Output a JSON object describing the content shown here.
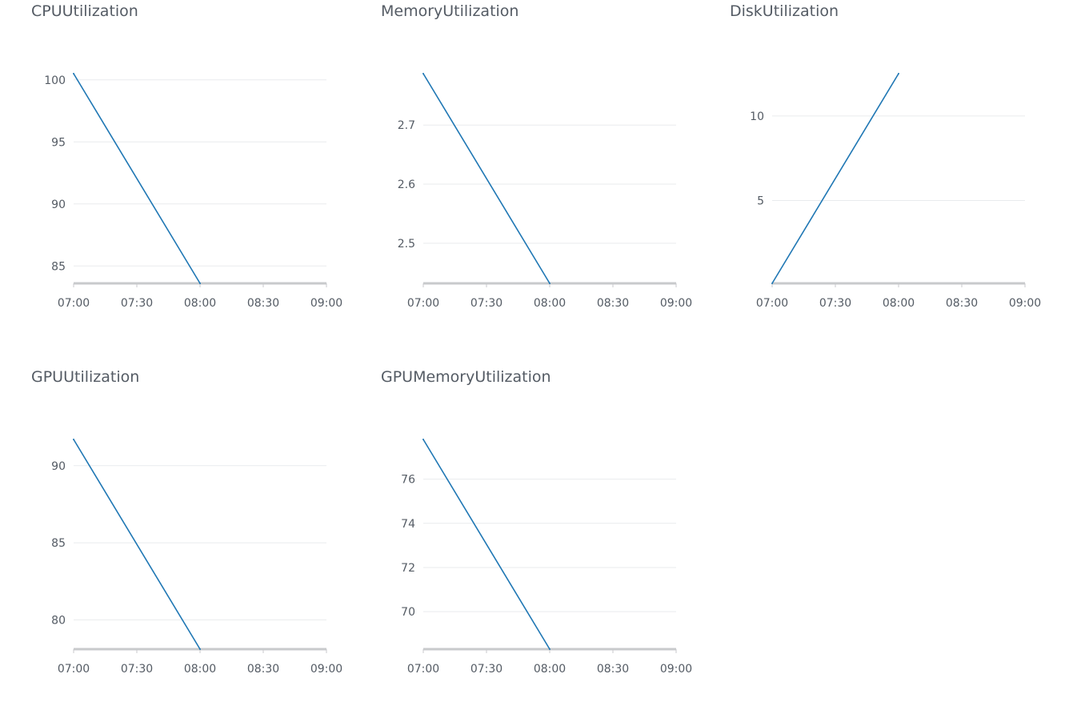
{
  "colors": {
    "series_line": "#1f77b4",
    "grid": "#e9ebed",
    "axis": "#c8cacc",
    "text": "#545b64"
  },
  "chart_data": [
    {
      "type": "line",
      "title": "CPUUtilization",
      "x": [
        "07:00",
        "08:00"
      ],
      "y": [
        100.5,
        83.6
      ],
      "xticks": [
        "07:00",
        "07:30",
        "08:00",
        "08:30",
        "09:00"
      ],
      "yticks": [
        85,
        90,
        95,
        100
      ],
      "ylim": [
        83.6,
        100.5
      ],
      "grid": true
    },
    {
      "type": "line",
      "title": "MemoryUtilization",
      "x": [
        "07:00",
        "08:00"
      ],
      "y": [
        2.787,
        2.432
      ],
      "xticks": [
        "07:00",
        "07:30",
        "08:00",
        "08:30",
        "09:00"
      ],
      "yticks": [
        2.5,
        2.6,
        2.7
      ],
      "ylim": [
        2.432,
        2.787
      ],
      "grid": true
    },
    {
      "type": "line",
      "title": "DiskUtilization",
      "x": [
        "07:00",
        "08:00"
      ],
      "y": [
        0.1,
        12.5
      ],
      "xticks": [
        "07:00",
        "07:30",
        "08:00",
        "08:30",
        "09:00"
      ],
      "yticks": [
        5,
        10
      ],
      "ylim": [
        0.1,
        12.5
      ],
      "grid": true
    },
    {
      "type": "line",
      "title": "GPUUtilization",
      "x": [
        "07:00",
        "08:00"
      ],
      "y": [
        91.7,
        78.1
      ],
      "xticks": [
        "07:00",
        "07:30",
        "08:00",
        "08:30",
        "09:00"
      ],
      "yticks": [
        80,
        85,
        90
      ],
      "ylim": [
        78.1,
        91.7
      ],
      "grid": true
    },
    {
      "type": "line",
      "title": "GPUMemoryUtilization",
      "x": [
        "07:00",
        "08:00"
      ],
      "y": [
        77.8,
        68.3
      ],
      "xticks": [
        "07:00",
        "07:30",
        "08:00",
        "08:30",
        "09:00"
      ],
      "yticks": [
        70,
        72,
        74,
        76
      ],
      "ylim": [
        68.3,
        77.8
      ],
      "grid": true
    }
  ]
}
